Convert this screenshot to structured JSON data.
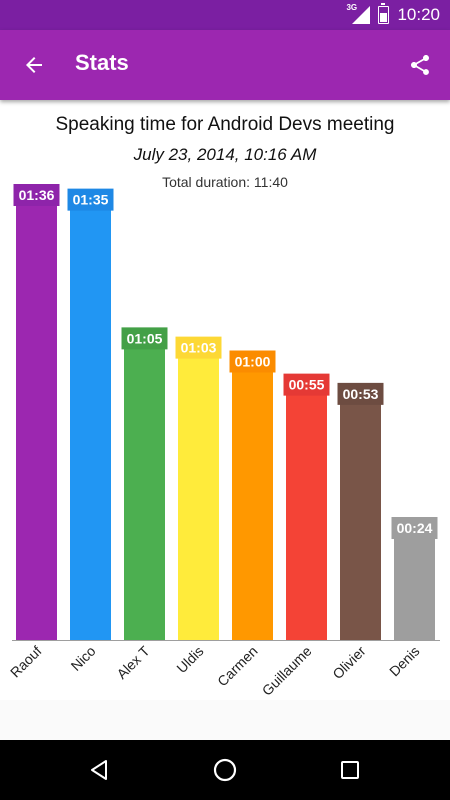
{
  "status_bar": {
    "network_label": "3G",
    "time": "10:20"
  },
  "app_bar": {
    "title": "Stats",
    "back_icon": "arrow-back-icon",
    "share_icon": "share-icon"
  },
  "chart_header": {
    "title": "Speaking time for Android Devs meeting",
    "date": "July 23, 2014, 10:16 AM",
    "total": "Total duration: 11:40"
  },
  "chart_data": {
    "type": "bar",
    "categories": [
      "Raouf",
      "Nico",
      "Alex T",
      "Uldis",
      "Carmen",
      "Guillaume",
      "Olivier",
      "Denis"
    ],
    "values": [
      96,
      95,
      65,
      63,
      60,
      55,
      53,
      24
    ],
    "data_labels": [
      "01:36",
      "01:35",
      "01:05",
      "01:03",
      "01:00",
      "00:55",
      "00:53",
      "00:24"
    ],
    "colors": [
      "#9c27b0",
      "#2196f3",
      "#4caf50",
      "#ffeb3b",
      "#ff9800",
      "#f44336",
      "#795548",
      "#9e9e9e"
    ],
    "label_colors": [
      "#8e24aa",
      "#1e88e5",
      "#43a047",
      "#fdd835",
      "#fb8c00",
      "#e53935",
      "#6d4c41",
      "#9e9e9e"
    ],
    "ylim": [
      0,
      96
    ]
  },
  "nav_bar": {
    "back_icon": "nav-back-icon",
    "home_icon": "nav-home-icon",
    "recents_icon": "nav-recents-icon"
  }
}
